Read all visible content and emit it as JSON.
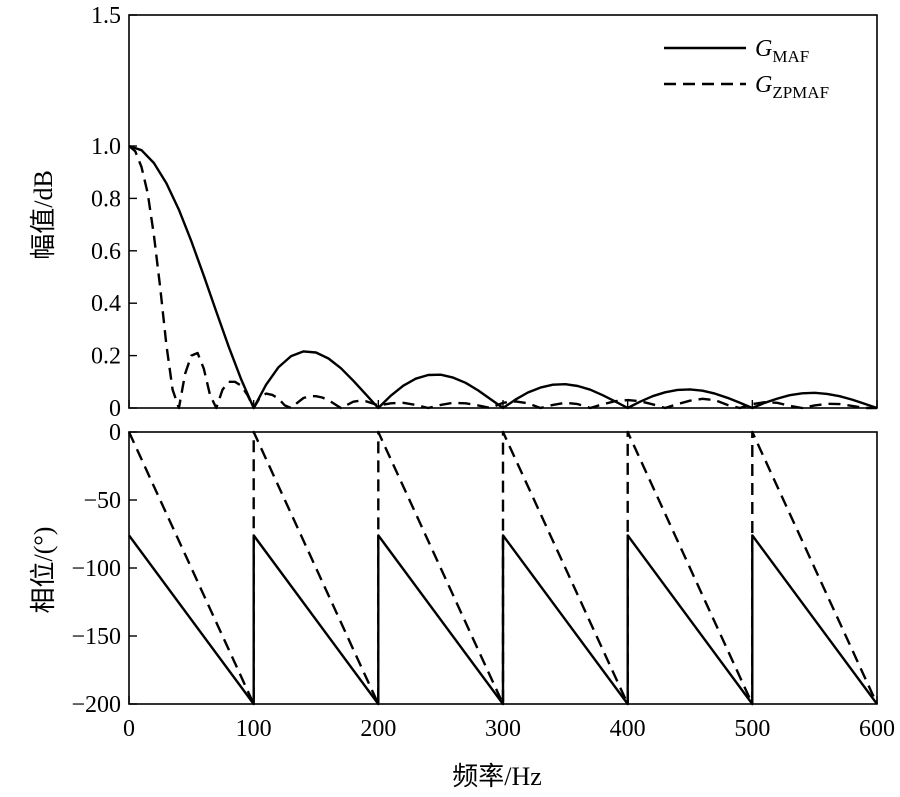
{
  "chart_data": [
    {
      "type": "line",
      "panel": "magnitude",
      "xlim": [
        0,
        600
      ],
      "ylim": [
        0,
        1.5
      ],
      "ylabel": "幅值/dB",
      "y_ticks": [
        "1.5",
        "1.0",
        "0.8",
        "0.6",
        "0.4",
        "0.2",
        "0"
      ],
      "y_tick_values": [
        1.5,
        1.0,
        0.8,
        0.6,
        0.4,
        0.2,
        0
      ],
      "legend_position": "top-right",
      "legend": [
        {
          "main": "G",
          "sub": "MAF",
          "style": "solid"
        },
        {
          "main": "G",
          "sub": "ZPMAF",
          "style": "dashed"
        }
      ],
      "series": [
        {
          "name": "GMAF",
          "style": "solid",
          "x": [
            0,
            10,
            20,
            30,
            40,
            50,
            60,
            70,
            80,
            90,
            100,
            110,
            120,
            130,
            140,
            150,
            160,
            170,
            180,
            190,
            200,
            210,
            220,
            230,
            240,
            250,
            260,
            270,
            280,
            290,
            300,
            310,
            320,
            330,
            340,
            350,
            360,
            370,
            380,
            390,
            400,
            410,
            420,
            430,
            440,
            450,
            460,
            470,
            480,
            490,
            500,
            510,
            520,
            530,
            540,
            550,
            560,
            570,
            580,
            590,
            600
          ],
          "y": [
            1.0,
            0.984,
            0.935,
            0.858,
            0.757,
            0.637,
            0.505,
            0.368,
            0.234,
            0.109,
            0.0,
            0.089,
            0.156,
            0.198,
            0.216,
            0.212,
            0.189,
            0.152,
            0.104,
            0.052,
            0.0,
            0.047,
            0.085,
            0.112,
            0.126,
            0.127,
            0.116,
            0.096,
            0.067,
            0.034,
            0.0,
            0.032,
            0.059,
            0.078,
            0.089,
            0.091,
            0.084,
            0.07,
            0.049,
            0.025,
            0.0,
            0.024,
            0.045,
            0.06,
            0.069,
            0.071,
            0.066,
            0.055,
            0.039,
            0.02,
            0.0,
            0.02,
            0.036,
            0.049,
            0.056,
            0.058,
            0.054,
            0.045,
            0.032,
            0.016,
            0.0
          ]
        },
        {
          "name": "GZPMAF",
          "style": "dashed",
          "x": [
            0,
            5,
            10,
            15,
            20,
            25,
            30,
            35,
            40,
            45,
            50,
            55,
            60,
            65,
            70,
            75,
            80,
            85,
            90,
            95,
            100,
            105,
            110,
            115,
            120,
            125,
            130,
            135,
            140,
            145,
            150,
            155,
            160,
            165,
            170,
            175,
            180,
            185,
            190,
            195,
            200,
            210,
            220,
            230,
            240,
            250,
            260,
            270,
            280,
            290,
            300,
            310,
            320,
            330,
            340,
            350,
            360,
            370,
            380,
            390,
            400,
            410,
            420,
            430,
            440,
            450,
            460,
            470,
            480,
            490,
            500,
            510,
            520,
            530,
            540,
            550,
            560,
            570,
            580,
            590,
            600
          ],
          "y": [
            1.0,
            0.98,
            0.92,
            0.82,
            0.66,
            0.46,
            0.24,
            0.07,
            0.0,
            0.13,
            0.2,
            0.21,
            0.15,
            0.05,
            0.0,
            0.07,
            0.1,
            0.1,
            0.085,
            0.05,
            0.0,
            0.04,
            0.055,
            0.05,
            0.035,
            0.01,
            0.0,
            0.02,
            0.038,
            0.045,
            0.045,
            0.04,
            0.03,
            0.015,
            0.0,
            0.012,
            0.024,
            0.028,
            0.026,
            0.018,
            0.01,
            0.018,
            0.02,
            0.012,
            0.0,
            0.012,
            0.02,
            0.018,
            0.01,
            0.0,
            0.02,
            0.025,
            0.018,
            0.0,
            0.012,
            0.02,
            0.015,
            0.0,
            0.014,
            0.026,
            0.03,
            0.026,
            0.014,
            0.0,
            0.015,
            0.028,
            0.035,
            0.03,
            0.012,
            0.0,
            0.015,
            0.022,
            0.02,
            0.008,
            0.0,
            0.01,
            0.016,
            0.015,
            0.008,
            0.0,
            0.0
          ]
        }
      ]
    },
    {
      "type": "line",
      "panel": "phase",
      "xlim": [
        0,
        600
      ],
      "ylim": [
        -200,
        0
      ],
      "xlabel": "频率/Hz",
      "ylabel": "相位/(°)",
      "x_ticks": [
        "0",
        "100",
        "200",
        "300",
        "400",
        "500",
        "600"
      ],
      "x_tick_values": [
        0,
        100,
        200,
        300,
        400,
        500,
        600
      ],
      "y_ticks": [
        "0",
        "−50",
        "−100",
        "−150",
        "−200"
      ],
      "y_tick_values": [
        0,
        -50,
        -100,
        -150,
        -200
      ],
      "series": [
        {
          "name": "GMAF",
          "style": "solid",
          "x": [
            0,
            100,
            100,
            200,
            200,
            300,
            300,
            400,
            400,
            500,
            500,
            600
          ],
          "y": [
            -76,
            -200,
            -76,
            -200,
            -76,
            -200,
            -76,
            -200,
            -76,
            -200,
            -76,
            -200
          ]
        },
        {
          "name": "GZPMAF",
          "style": "dashed",
          "x": [
            0,
            100,
            100,
            200,
            200,
            300,
            300,
            400,
            400,
            500,
            500,
            600
          ],
          "y": [
            0,
            -200,
            0,
            -200,
            0,
            -200,
            0,
            -200,
            0,
            -200,
            0,
            -200
          ]
        }
      ]
    }
  ]
}
